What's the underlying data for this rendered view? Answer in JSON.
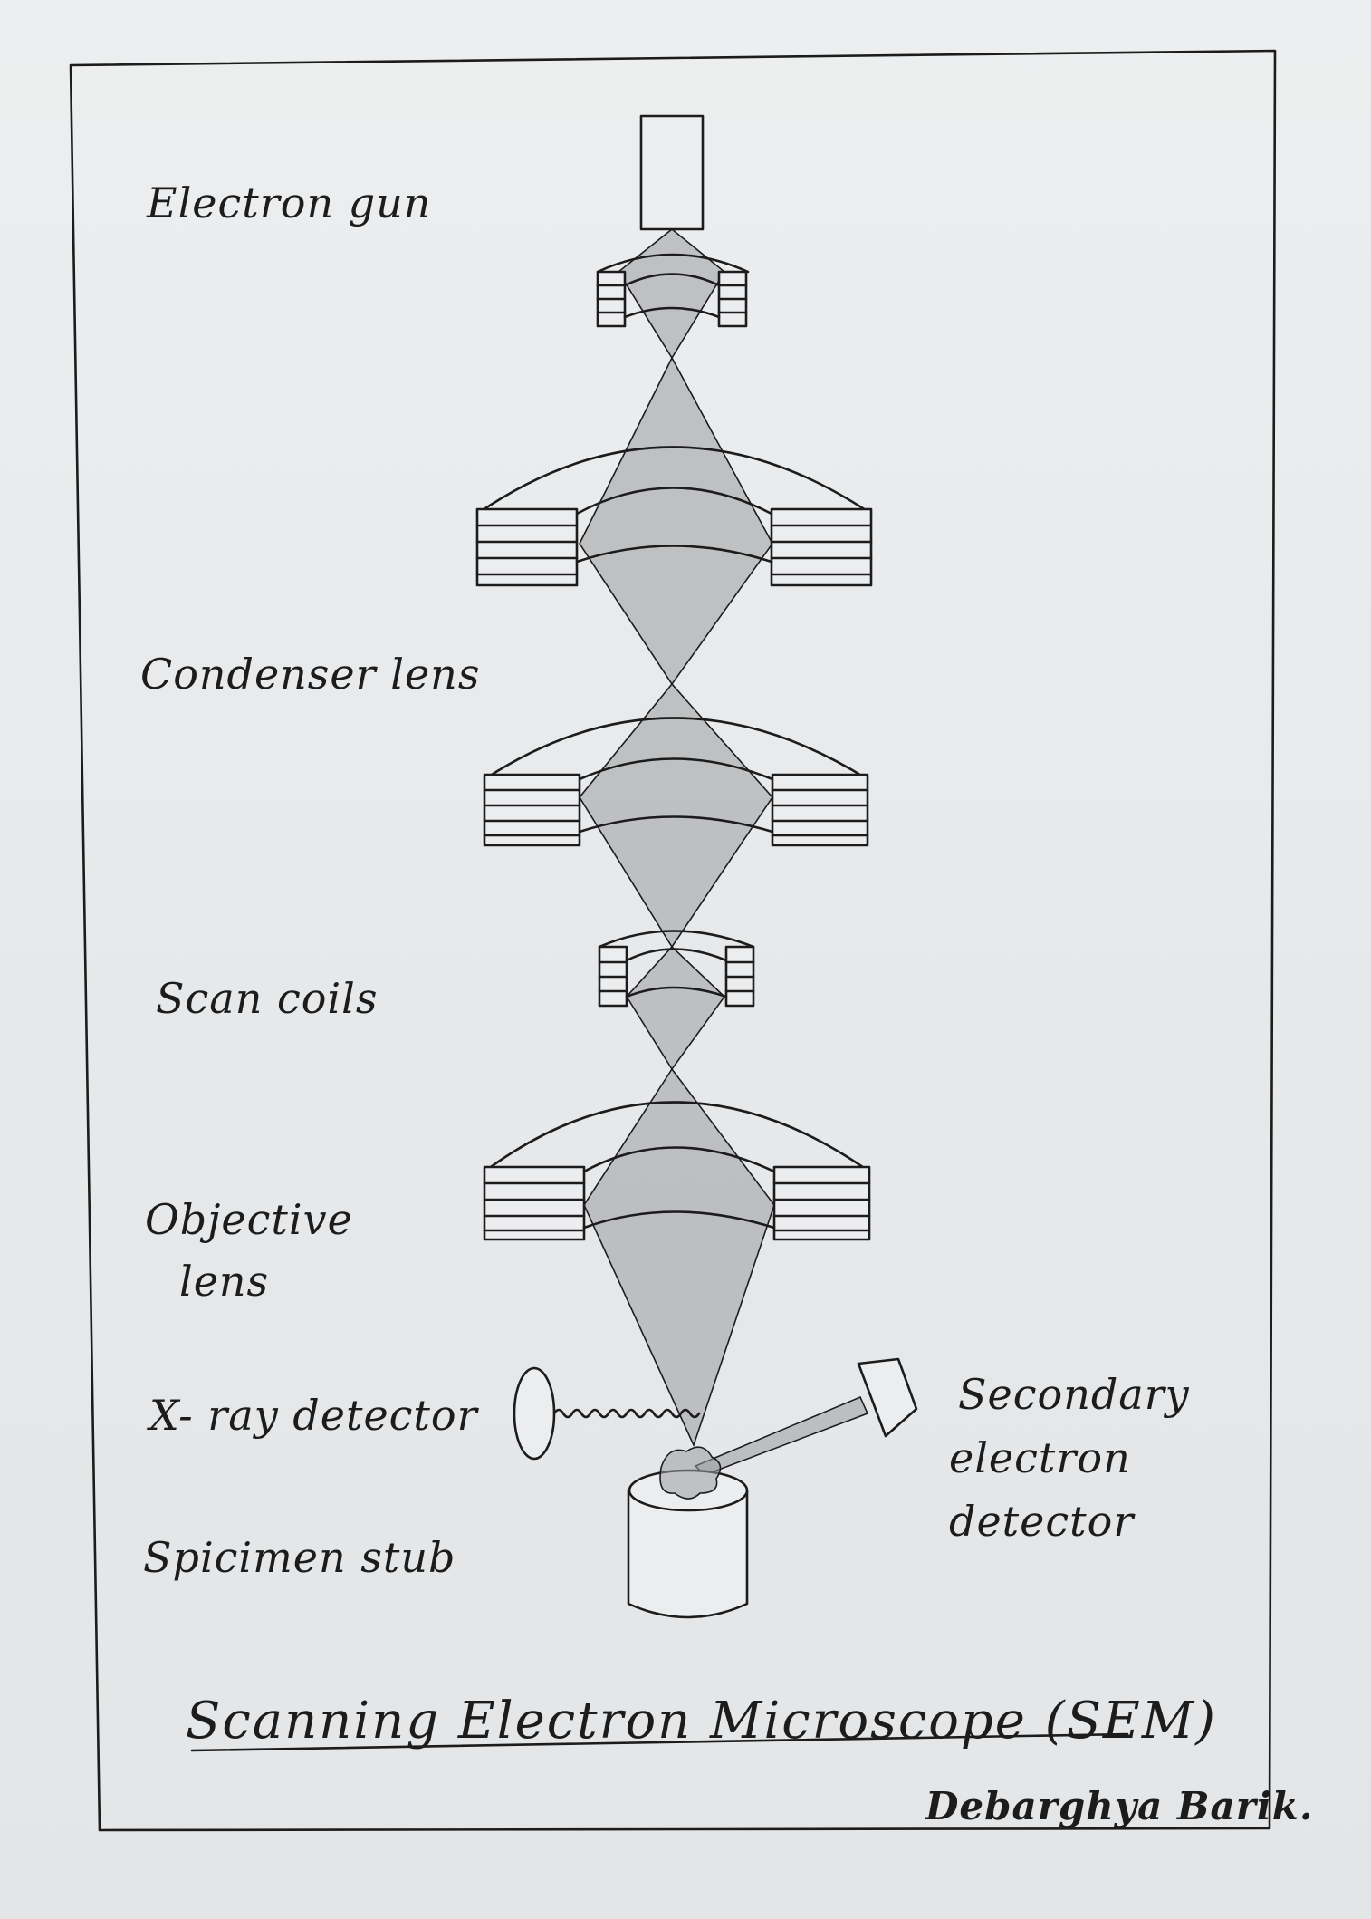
{
  "labels": {
    "electron_gun": "Electron gun",
    "condenser_lens": "Condenser lens",
    "scan_coils": "Scan coils",
    "objective_lens_line1": "Objective",
    "objective_lens_line2": "lens",
    "xray_detector": "X- ray detector",
    "specimen_stub": "Spicimen stub",
    "secondary_line1": "Secondary",
    "secondary_line2": "electron",
    "secondary_line3": "detector"
  },
  "title": "Scanning Electron Microscope (SEM)",
  "signature": "Debarghya Barik.",
  "colors": {
    "ink": "#1c1c1c",
    "paper": "#eceeef",
    "shading": "#9a9ca0"
  }
}
